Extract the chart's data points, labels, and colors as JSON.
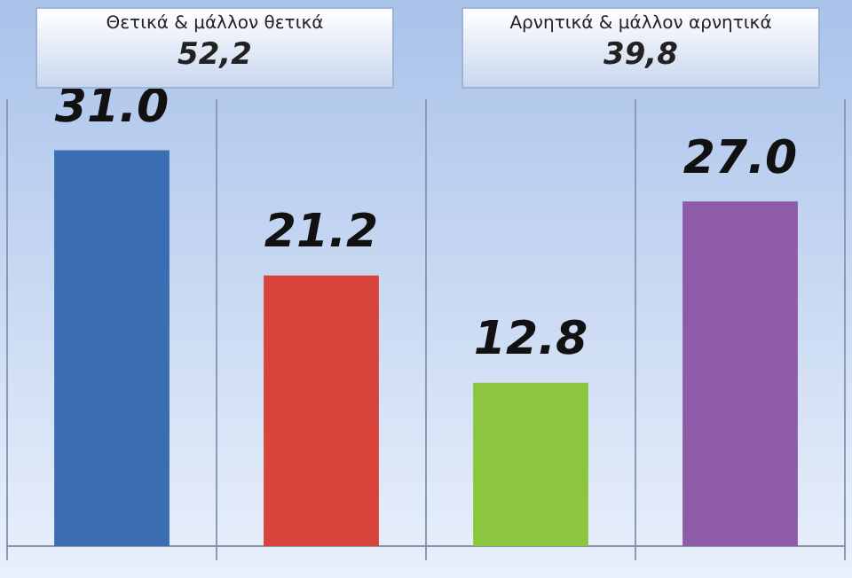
{
  "chart_data": {
    "type": "bar",
    "categories": [
      null,
      null,
      null,
      null
    ],
    "values": [
      31.0,
      21.2,
      12.8,
      27.0
    ],
    "colors": [
      "#3b6db3",
      "#d8433b",
      "#8cc63e",
      "#8d5ba8"
    ],
    "value_labels": [
      "31.0",
      "21.2",
      "12.8",
      "27.0"
    ],
    "grid": "x",
    "annotations": [
      "Θετικά & μάλλον θετικά",
      "52,2",
      "Αρνητικά & μάλλον αρνητικά",
      "39,8"
    ]
  }
}
